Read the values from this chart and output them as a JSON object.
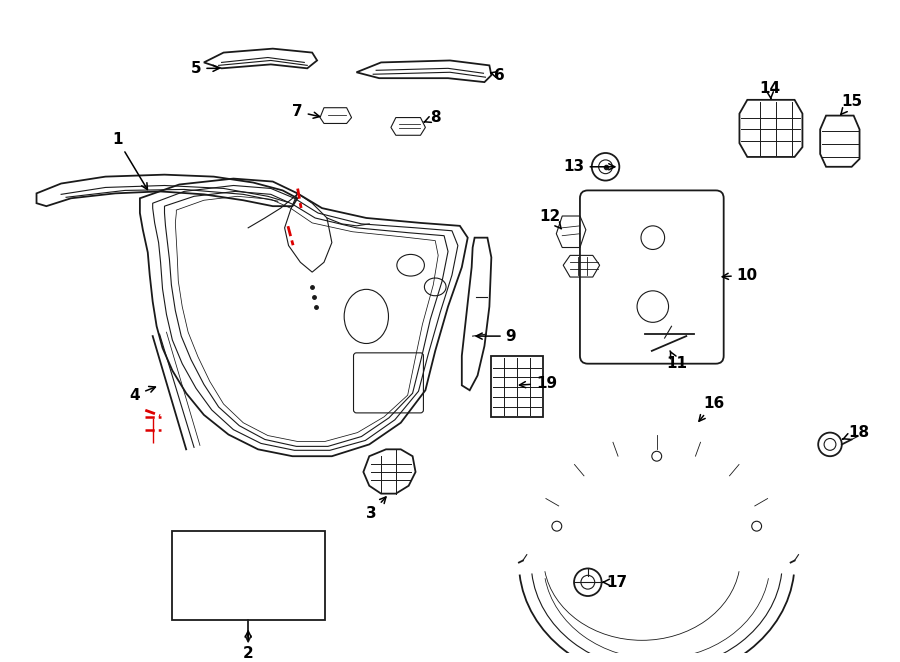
{
  "bg_color": "#ffffff",
  "line_color": "#1a1a1a",
  "red_color": "#dd0000",
  "fig_width": 9.0,
  "fig_height": 6.62,
  "dpi": 100
}
